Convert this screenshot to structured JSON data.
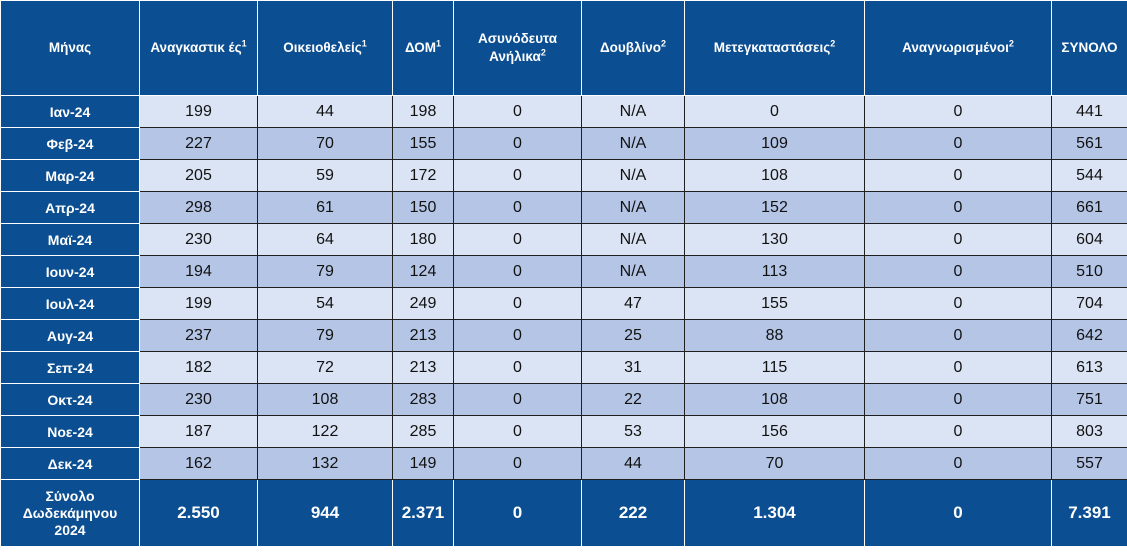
{
  "header": {
    "month": "Μήνας",
    "c1": "Αναγκαστικ ές",
    "c1_sup": "1",
    "c2": "Οικειοθελείς",
    "c2_sup": "1",
    "c3": "ΔΟΜ",
    "c3_sup": "1",
    "c4": "Ασυνόδευτα Ανήλικα",
    "c4_sup": "2",
    "c5": "Δουβλίνο",
    "c5_sup": "2",
    "c6": "Μετεγκαταστάσεις",
    "c6_sup": "2",
    "c7": "Αναγνωρισμένοι",
    "c7_sup": "2",
    "c8": "ΣΥΝΟΛΟ"
  },
  "rows": [
    {
      "month": "Ιαν-24",
      "v": [
        "199",
        "44",
        "198",
        "0",
        "N/A",
        "0",
        "0",
        "441"
      ]
    },
    {
      "month": "Φεβ-24",
      "v": [
        "227",
        "70",
        "155",
        "0",
        "N/A",
        "109",
        "0",
        "561"
      ]
    },
    {
      "month": "Μαρ-24",
      "v": [
        "205",
        "59",
        "172",
        "0",
        "N/A",
        "108",
        "0",
        "544"
      ]
    },
    {
      "month": "Απρ-24",
      "v": [
        "298",
        "61",
        "150",
        "0",
        "N/A",
        "152",
        "0",
        "661"
      ]
    },
    {
      "month": "Μαϊ-24",
      "v": [
        "230",
        "64",
        "180",
        "0",
        "N/A",
        "130",
        "0",
        "604"
      ]
    },
    {
      "month": "Ιουν-24",
      "v": [
        "194",
        "79",
        "124",
        "0",
        "N/A",
        "113",
        "0",
        "510"
      ]
    },
    {
      "month": "Ιουλ-24",
      "v": [
        "199",
        "54",
        "249",
        "0",
        "47",
        "155",
        "0",
        "704"
      ]
    },
    {
      "month": "Αυγ-24",
      "v": [
        "237",
        "79",
        "213",
        "0",
        "25",
        "88",
        "0",
        "642"
      ]
    },
    {
      "month": "Σεπ-24",
      "v": [
        "182",
        "72",
        "213",
        "0",
        "31",
        "115",
        "0",
        "613"
      ]
    },
    {
      "month": "Οκτ-24",
      "v": [
        "230",
        "108",
        "283",
        "0",
        "22",
        "108",
        "0",
        "751"
      ]
    },
    {
      "month": "Νοε-24",
      "v": [
        "187",
        "122",
        "285",
        "0",
        "53",
        "156",
        "0",
        "803"
      ]
    },
    {
      "month": "Δεκ-24",
      "v": [
        "162",
        "132",
        "149",
        "0",
        "44",
        "70",
        "0",
        "557"
      ]
    }
  ],
  "total": {
    "label_line1": "Σύνολο",
    "label_line2": "Δωδεκάμηνου",
    "label_line3": "2024",
    "v": [
      "2.550",
      "944",
      "2.371",
      "0",
      "222",
      "1.304",
      "0",
      "7.391"
    ]
  },
  "colors": {
    "header_bg": "#0b4e92",
    "row_light": "#dbe4f4",
    "row_dark": "#b4c5e6"
  }
}
